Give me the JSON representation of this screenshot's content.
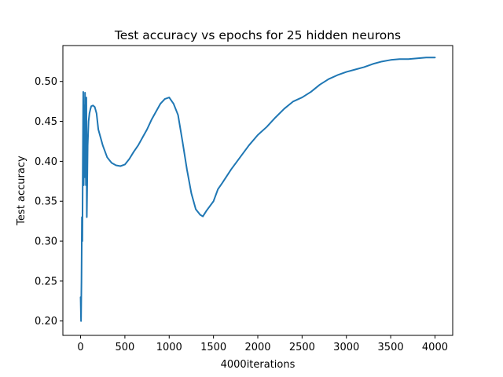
{
  "chart_data": {
    "type": "line",
    "title": "Test accuracy vs epochs for 25 hidden neurons",
    "xlabel": "4000iterations",
    "ylabel": "Test accuracy",
    "xlim": [
      -200,
      4200
    ],
    "ylim": [
      0.182,
      0.545
    ],
    "xticks": [
      0,
      500,
      1000,
      1500,
      2000,
      2500,
      3000,
      3500,
      4000
    ],
    "yticks": [
      0.2,
      0.25,
      0.3,
      0.35,
      0.4,
      0.45,
      0.5
    ],
    "ytick_labels": [
      "0.20",
      "0.25",
      "0.30",
      "0.35",
      "0.40",
      "0.45",
      "0.50"
    ],
    "grid": false,
    "line_color": "#1f77b4",
    "series": [
      {
        "x": [
          0,
          5,
          10,
          15,
          20,
          25,
          30,
          35,
          40,
          45,
          50,
          55,
          60,
          65,
          70,
          80,
          90,
          100,
          110,
          120,
          140,
          160,
          180,
          200,
          250,
          300,
          350,
          400,
          450,
          500,
          550,
          600,
          650,
          700,
          750,
          800,
          850,
          900,
          950,
          1000,
          1050,
          1100,
          1150,
          1200,
          1250,
          1300,
          1350,
          1380,
          1420,
          1500,
          1550,
          1600,
          1700,
          1800,
          1900,
          2000,
          2100,
          2200,
          2300,
          2400,
          2500,
          2600,
          2700,
          2800,
          2900,
          3000,
          3100,
          3200,
          3300,
          3400,
          3500,
          3600,
          3700,
          3800,
          3900,
          4000
        ],
        "y": [
          0.23,
          0.2,
          0.25,
          0.33,
          0.3,
          0.4,
          0.487,
          0.37,
          0.47,
          0.38,
          0.486,
          0.44,
          0.37,
          0.48,
          0.33,
          0.42,
          0.45,
          0.46,
          0.465,
          0.469,
          0.47,
          0.468,
          0.46,
          0.44,
          0.42,
          0.405,
          0.398,
          0.395,
          0.394,
          0.396,
          0.403,
          0.412,
          0.42,
          0.43,
          0.44,
          0.452,
          0.462,
          0.472,
          0.478,
          0.48,
          0.472,
          0.458,
          0.425,
          0.39,
          0.36,
          0.34,
          0.333,
          0.331,
          0.338,
          0.35,
          0.365,
          0.373,
          0.39,
          0.405,
          0.42,
          0.433,
          0.443,
          0.455,
          0.466,
          0.475,
          0.48,
          0.487,
          0.496,
          0.503,
          0.508,
          0.512,
          0.515,
          0.518,
          0.522,
          0.525,
          0.527,
          0.528,
          0.528,
          0.529,
          0.53,
          0.53
        ]
      }
    ]
  }
}
